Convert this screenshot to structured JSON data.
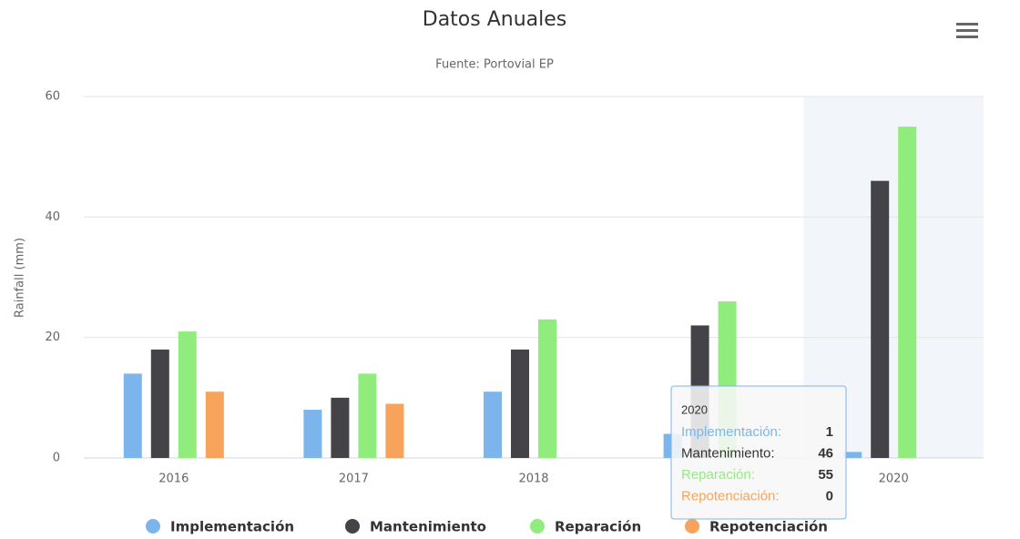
{
  "chart_data": {
    "type": "bar",
    "title": "Datos Anuales",
    "subtitle": "Fuente: Portovial EP",
    "y_label": "Rainfall (mm)",
    "categories": [
      "2016",
      "2017",
      "2018",
      null,
      "2020"
    ],
    "series": [
      {
        "name": "Implementación",
        "color": "#7cb5ec",
        "values": [
          14,
          8,
          11,
          4,
          1
        ]
      },
      {
        "name": "Mantenimiento",
        "color": "#434348",
        "values": [
          18,
          10,
          18,
          22,
          46
        ]
      },
      {
        "name": "Reparación",
        "color": "#90ed7d",
        "values": [
          21,
          14,
          23,
          26,
          55
        ]
      },
      {
        "name": "Repotenciación",
        "color": "#f7a35c",
        "values": [
          11,
          9,
          0,
          0,
          0
        ]
      }
    ],
    "ylim": [
      0,
      60
    ],
    "yticks": [
      0,
      20,
      40,
      60
    ],
    "grid": true,
    "tooltip": {
      "labels": [
        "Implementación:",
        "Mantenimiento:",
        "Reparación:",
        "Repotenciación:"
      ]
    }
  }
}
